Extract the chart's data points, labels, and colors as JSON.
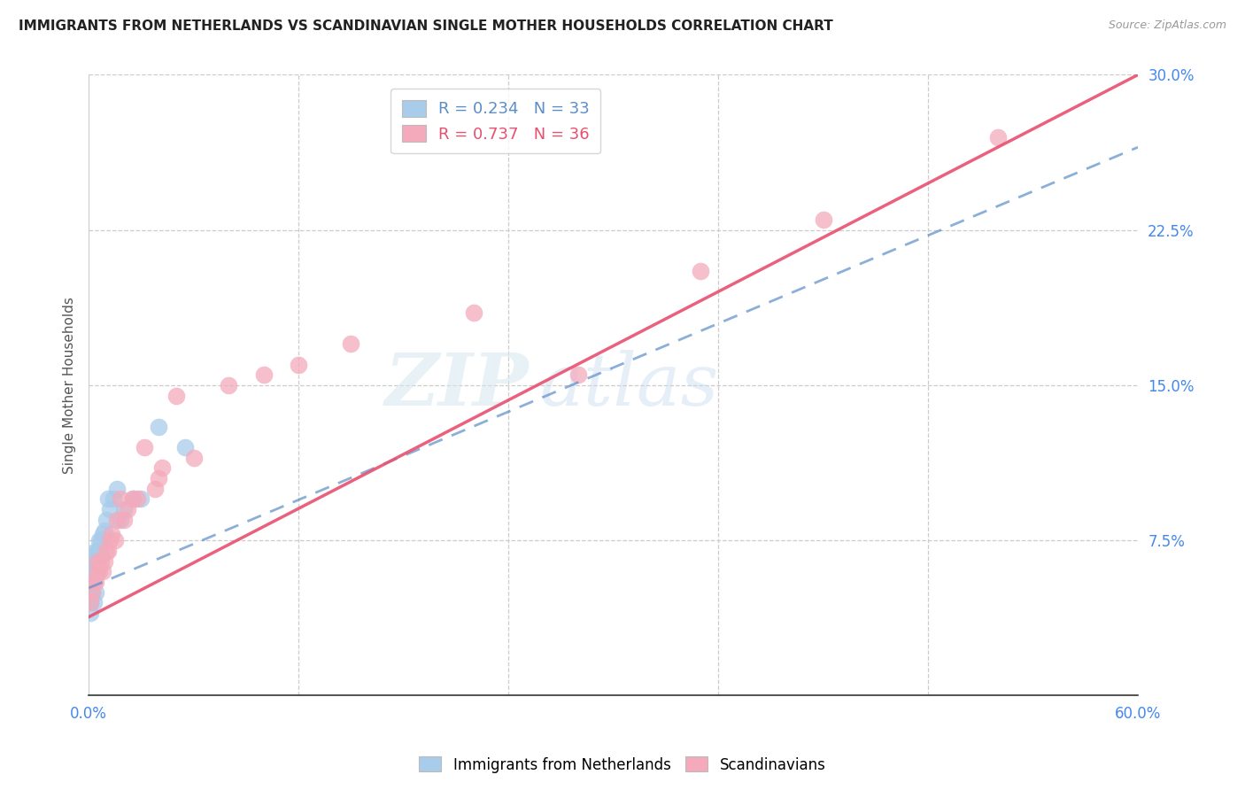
{
  "title": "IMMIGRANTS FROM NETHERLANDS VS SCANDINAVIAN SINGLE MOTHER HOUSEHOLDS CORRELATION CHART",
  "source": "Source: ZipAtlas.com",
  "ylabel": "Single Mother Households",
  "xlim": [
    0.0,
    0.6
  ],
  "ylim": [
    0.0,
    0.3
  ],
  "xticks": [
    0.0,
    0.12,
    0.24,
    0.36,
    0.48,
    0.6
  ],
  "xticklabels": [
    "0.0%",
    "",
    "",
    "",
    "",
    "60.0%"
  ],
  "ytick_positions": [
    0.075,
    0.15,
    0.225,
    0.3
  ],
  "ytick_labels": [
    "7.5%",
    "15.0%",
    "22.5%",
    "30.0%"
  ],
  "legend1_text": "R = 0.234   N = 33",
  "legend2_text": "R = 0.737   N = 36",
  "blue_color": "#A8CCEA",
  "pink_color": "#F4AABB",
  "blue_line_color": "#5B8DC8",
  "pink_line_color": "#E85070",
  "watermark_zip": "ZIP",
  "watermark_atlas": "atlas",
  "blue_x": [
    0.001,
    0.001,
    0.002,
    0.002,
    0.002,
    0.003,
    0.003,
    0.003,
    0.003,
    0.004,
    0.004,
    0.004,
    0.004,
    0.005,
    0.005,
    0.005,
    0.006,
    0.006,
    0.007,
    0.007,
    0.008,
    0.009,
    0.01,
    0.011,
    0.012,
    0.014,
    0.016,
    0.018,
    0.02,
    0.025,
    0.03,
    0.04,
    0.055
  ],
  "blue_y": [
    0.04,
    0.045,
    0.05,
    0.055,
    0.06,
    0.045,
    0.055,
    0.06,
    0.065,
    0.05,
    0.06,
    0.065,
    0.07,
    0.06,
    0.065,
    0.07,
    0.07,
    0.075,
    0.068,
    0.075,
    0.078,
    0.08,
    0.085,
    0.095,
    0.09,
    0.095,
    0.1,
    0.085,
    0.09,
    0.095,
    0.095,
    0.13,
    0.12
  ],
  "pink_x": [
    0.001,
    0.002,
    0.003,
    0.004,
    0.005,
    0.005,
    0.006,
    0.007,
    0.008,
    0.009,
    0.01,
    0.011,
    0.012,
    0.013,
    0.015,
    0.016,
    0.018,
    0.02,
    0.022,
    0.025,
    0.028,
    0.032,
    0.038,
    0.04,
    0.042,
    0.05,
    0.06,
    0.08,
    0.1,
    0.12,
    0.15,
    0.22,
    0.28,
    0.35,
    0.42,
    0.52
  ],
  "pink_y": [
    0.045,
    0.05,
    0.055,
    0.055,
    0.06,
    0.065,
    0.06,
    0.065,
    0.06,
    0.065,
    0.07,
    0.07,
    0.075,
    0.078,
    0.075,
    0.085,
    0.095,
    0.085,
    0.09,
    0.095,
    0.095,
    0.12,
    0.1,
    0.105,
    0.11,
    0.145,
    0.115,
    0.15,
    0.155,
    0.16,
    0.17,
    0.185,
    0.155,
    0.205,
    0.23,
    0.27
  ],
  "blue_line_x0": 0.0,
  "blue_line_y0": 0.052,
  "blue_line_x1": 0.6,
  "blue_line_y1": 0.265,
  "pink_line_x0": 0.0,
  "pink_line_y0": 0.038,
  "pink_line_x1": 0.6,
  "pink_line_y1": 0.3
}
